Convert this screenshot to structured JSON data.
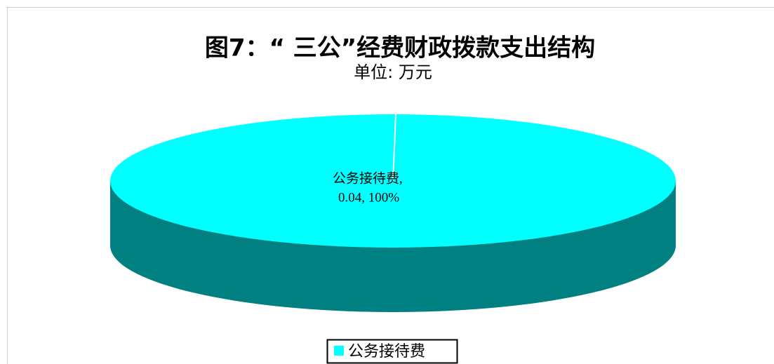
{
  "chart_data": {
    "type": "pie3d",
    "title": "图7：“ 三公”经费财政拨款支出结构",
    "subtitle": "单位: 万元",
    "categories": [
      "公务接待费"
    ],
    "values": [
      0.04
    ],
    "percents": [
      100
    ],
    "value_labels": [
      [
        "公务接待费,",
        "0.04, 100%"
      ]
    ],
    "colors": [
      "#00ffff"
    ],
    "side_colors": [
      "#008080"
    ],
    "legend": "bottom"
  }
}
